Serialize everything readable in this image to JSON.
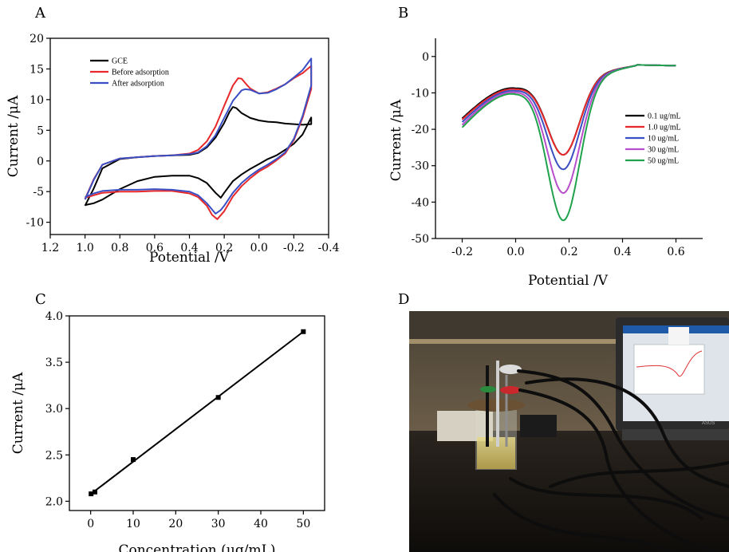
{
  "chart_data": [
    {
      "panel": "A",
      "type": "line",
      "xlabel": "Potential /V",
      "ylabel": "Current /μA",
      "xlim": [
        1.2,
        -0.4
      ],
      "ylim": [
        -12,
        20
      ],
      "xticks": [
        "1.2",
        "1.0",
        "0.8",
        "0.6",
        "0.4",
        "0.2",
        "0.0",
        "-0.2",
        "-0.4"
      ],
      "xtick_values": [
        1.2,
        1.0,
        0.8,
        0.6,
        0.4,
        0.2,
        0.0,
        -0.2,
        -0.4
      ],
      "yticks": [
        "-10",
        "-5",
        "0",
        "5",
        "10",
        "15",
        "20"
      ],
      "ytick_values": [
        -10,
        -5,
        0,
        5,
        10,
        15,
        20
      ],
      "legend_position": "top-left",
      "series": [
        {
          "name": "GCE",
          "color": "#000000",
          "x": [
            1.0,
            0.95,
            0.9,
            0.8,
            0.7,
            0.6,
            0.5,
            0.4,
            0.35,
            0.3,
            0.25,
            0.2,
            0.17,
            0.15,
            0.13,
            0.1,
            0.05,
            0.0,
            -0.05,
            -0.1,
            -0.15,
            -0.2,
            -0.25,
            -0.3,
            -0.3,
            -0.25,
            -0.2,
            -0.15,
            -0.1,
            -0.05,
            0.0,
            0.05,
            0.1,
            0.15,
            0.2,
            0.22,
            0.25,
            0.3,
            0.35,
            0.4,
            0.5,
            0.6,
            0.7,
            0.8,
            0.9,
            0.95,
            1.0
          ],
          "y": [
            -7.3,
            -4.5,
            -1.2,
            0.3,
            0.6,
            0.8,
            0.9,
            1.0,
            1.3,
            2.2,
            3.8,
            6.2,
            8.0,
            8.8,
            8.6,
            7.8,
            7.0,
            6.6,
            6.4,
            6.3,
            6.1,
            6.0,
            5.9,
            6.0,
            7.1,
            4.3,
            2.8,
            1.8,
            0.9,
            0.3,
            -0.5,
            -1.3,
            -2.2,
            -3.3,
            -5.2,
            -6.0,
            -5.2,
            -3.6,
            -2.8,
            -2.4,
            -2.4,
            -2.6,
            -3.3,
            -4.6,
            -6.3,
            -6.9,
            -7.2
          ]
        },
        {
          "name": "Before adsorption",
          "color": "#e8292b",
          "x": [
            1.0,
            0.95,
            0.9,
            0.8,
            0.7,
            0.6,
            0.5,
            0.4,
            0.35,
            0.3,
            0.25,
            0.2,
            0.15,
            0.12,
            0.1,
            0.07,
            0.05,
            0.0,
            -0.05,
            -0.1,
            -0.15,
            -0.2,
            -0.25,
            -0.3,
            -0.3,
            -0.25,
            -0.2,
            -0.15,
            -0.1,
            -0.05,
            0.0,
            0.05,
            0.1,
            0.15,
            0.2,
            0.24,
            0.27,
            0.3,
            0.35,
            0.4,
            0.5,
            0.6,
            0.7,
            0.8,
            0.9,
            0.95,
            1.0
          ],
          "y": [
            -6.2,
            -3.0,
            -0.6,
            0.4,
            0.6,
            0.8,
            0.9,
            1.2,
            1.8,
            3.2,
            5.6,
            9.0,
            12.3,
            13.5,
            13.4,
            12.4,
            11.8,
            11.0,
            11.2,
            11.8,
            12.5,
            13.5,
            14.3,
            15.5,
            11.7,
            7.0,
            3.4,
            1.2,
            0.1,
            -0.9,
            -1.7,
            -2.8,
            -4.1,
            -5.8,
            -8.2,
            -9.5,
            -8.8,
            -7.3,
            -5.9,
            -5.3,
            -4.9,
            -4.9,
            -5.0,
            -5.0,
            -5.2,
            -5.6,
            -6.0
          ]
        },
        {
          "name": "After adsorption",
          "color": "#3a4fc3",
          "x": [
            1.0,
            0.95,
            0.9,
            0.8,
            0.7,
            0.6,
            0.5,
            0.4,
            0.35,
            0.3,
            0.25,
            0.2,
            0.15,
            0.1,
            0.08,
            0.05,
            0.0,
            -0.05,
            -0.1,
            -0.15,
            -0.2,
            -0.25,
            -0.3,
            -0.3,
            -0.25,
            -0.2,
            -0.15,
            -0.1,
            -0.05,
            0.0,
            0.05,
            0.1,
            0.15,
            0.2,
            0.22,
            0.25,
            0.3,
            0.35,
            0.4,
            0.5,
            0.6,
            0.7,
            0.8,
            0.9,
            0.95,
            1.0
          ],
          "y": [
            -6.3,
            -3.1,
            -0.6,
            0.4,
            0.6,
            0.8,
            0.9,
            1.1,
            1.4,
            2.4,
            4.2,
            7.0,
            9.8,
            11.5,
            11.7,
            11.6,
            11.0,
            11.1,
            11.7,
            12.5,
            13.6,
            14.8,
            16.7,
            12.3,
            7.3,
            3.6,
            1.4,
            0.3,
            -0.6,
            -1.4,
            -2.4,
            -3.6,
            -5.2,
            -7.3,
            -8.0,
            -8.6,
            -6.9,
            -5.6,
            -5.0,
            -4.7,
            -4.6,
            -4.7,
            -4.7,
            -4.9,
            -5.3,
            -5.9
          ]
        }
      ]
    },
    {
      "panel": "B",
      "type": "line",
      "xlabel": "Potential /V",
      "ylabel": "Current /μA",
      "xlim": [
        -0.3,
        0.7
      ],
      "ylim": [
        -50,
        5
      ],
      "xticks": [
        "-0.2",
        "0.0",
        "0.2",
        "0.4",
        "0.6"
      ],
      "xtick_values": [
        -0.2,
        0.0,
        0.2,
        0.4,
        0.6
      ],
      "yticks": [
        "-50",
        "-40",
        "-30",
        "-20",
        "-10",
        "0"
      ],
      "ytick_values": [
        -50,
        -40,
        -30,
        -20,
        -10,
        0
      ],
      "legend_position": "right",
      "peak_x": 0.18,
      "peak_sigma": 0.06,
      "series": [
        {
          "name": "0.1 ug/mL",
          "color": "#000000",
          "peak": -27,
          "baseline_start": -17,
          "baseline_mid": -8.5
        },
        {
          "name": "1.0 ug/mL",
          "color": "#e8292b",
          "peak": -27,
          "baseline_start": -17.3,
          "baseline_mid": -8.8
        },
        {
          "name": "10 ug/mL",
          "color": "#3a4fc3",
          "peak": -31,
          "baseline_start": -18,
          "baseline_mid": -9.2
        },
        {
          "name": "30 ug/mL",
          "color": "#b64ec9",
          "peak": -37.5,
          "baseline_start": -18.8,
          "baseline_mid": -9.6
        },
        {
          "name": "50 ug/mL",
          "color": "#20a24d",
          "peak": -45,
          "baseline_start": -19.5,
          "baseline_mid": -10.0
        }
      ]
    },
    {
      "panel": "C",
      "type": "scatter",
      "xlabel": "Concentration (μg/mL)",
      "ylabel": "Current /μA",
      "xlim": [
        -5,
        55
      ],
      "ylim": [
        1.9,
        4.0
      ],
      "xticks": [
        "0",
        "10",
        "20",
        "30",
        "40",
        "50"
      ],
      "xtick_values": [
        0,
        10,
        20,
        30,
        40,
        50
      ],
      "yticks": [
        "2.0",
        "2.5",
        "3.0",
        "3.5",
        "4.0"
      ],
      "ytick_values": [
        2.0,
        2.5,
        3.0,
        3.5,
        4.0
      ],
      "series": [
        {
          "x": [
            0.1,
            1.0,
            10,
            30,
            50
          ],
          "y": [
            2.08,
            2.1,
            2.45,
            3.12,
            3.83
          ],
          "color": "#000000"
        }
      ],
      "fit_line": {
        "x": [
          0.1,
          50
        ],
        "y": [
          2.08,
          3.83
        ]
      }
    }
  ],
  "panels": {
    "a": "A",
    "b": "B",
    "c": "C",
    "d": "D"
  },
  "photo": {
    "laptop_brand": "ASUS"
  }
}
